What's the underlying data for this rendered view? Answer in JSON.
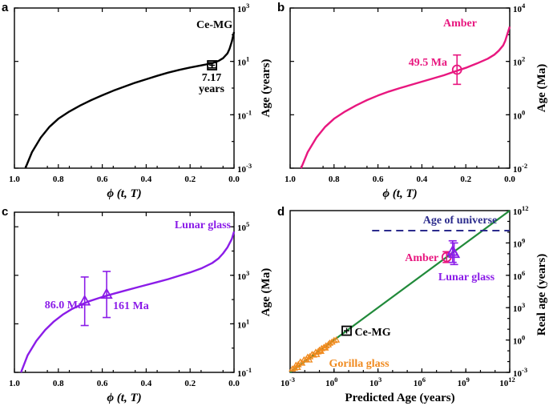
{
  "chart_data": [
    {
      "id": "a",
      "type": "line",
      "panel_letter": "a",
      "title": "Ce-MG",
      "xlabel_var": "ϕ",
      "xlabel_args": " (t, T)",
      "ylabel": "Age (years)",
      "xlim": [
        1.0,
        0.0
      ],
      "x_ticks": [
        "1.0",
        "0.8",
        "0.6",
        "0.4",
        "0.2",
        "0.0"
      ],
      "ylim_log10": [
        -3,
        3
      ],
      "y_ticks": [
        {
          "base": "10",
          "exp": "-3"
        },
        {
          "base": "10",
          "exp": "-1"
        },
        {
          "base": "10",
          "exp": "1"
        },
        {
          "base": "10",
          "exp": "3"
        }
      ],
      "color": "#000000",
      "curve": {
        "x": [
          0.95,
          0.92,
          0.88,
          0.84,
          0.8,
          0.75,
          0.7,
          0.65,
          0.6,
          0.55,
          0.5,
          0.45,
          0.4,
          0.35,
          0.3,
          0.25,
          0.2,
          0.15,
          0.1,
          0.07,
          0.05,
          0.03,
          0.02,
          0.01,
          0.0
        ],
        "log10y": [
          -3.0,
          -2.4,
          -1.85,
          -1.45,
          -1.15,
          -0.88,
          -0.65,
          -0.45,
          -0.27,
          -0.1,
          0.05,
          0.2,
          0.33,
          0.46,
          0.58,
          0.68,
          0.77,
          0.85,
          0.93,
          1.02,
          1.12,
          1.3,
          1.48,
          1.75,
          2.1
        ]
      },
      "marker": {
        "shape": "square",
        "x": 0.1,
        "value": 7.17,
        "log10y": 0.855,
        "err_log10": 0.1,
        "label_line1": "7.17",
        "label_line2": "years"
      }
    },
    {
      "id": "b",
      "type": "line",
      "panel_letter": "b",
      "title": "Amber",
      "xlabel_var": "ϕ",
      "xlabel_args": " (t, T)",
      "ylabel": "Age (Ma)",
      "xlim": [
        1.0,
        0.0
      ],
      "x_ticks": [
        "1.0",
        "0.8",
        "0.6",
        "0.4",
        "0.2",
        "0.0"
      ],
      "ylim_log10": [
        -2,
        4
      ],
      "y_ticks": [
        {
          "base": "10",
          "exp": "-2"
        },
        {
          "base": "10",
          "exp": "0"
        },
        {
          "base": "10",
          "exp": "2"
        },
        {
          "base": "10",
          "exp": "4"
        }
      ],
      "color": "#e8177f",
      "curve": {
        "x": [
          0.95,
          0.92,
          0.88,
          0.84,
          0.8,
          0.75,
          0.7,
          0.65,
          0.6,
          0.55,
          0.5,
          0.45,
          0.4,
          0.35,
          0.3,
          0.25,
          0.2,
          0.15,
          0.1,
          0.07,
          0.05,
          0.03,
          0.02,
          0.01,
          0.0
        ],
        "log10y": [
          -2.0,
          -1.4,
          -0.85,
          -0.45,
          -0.15,
          0.12,
          0.35,
          0.55,
          0.72,
          0.87,
          1.0,
          1.12,
          1.24,
          1.36,
          1.48,
          1.62,
          1.76,
          1.92,
          2.1,
          2.25,
          2.4,
          2.6,
          2.78,
          3.05,
          3.3
        ]
      },
      "marker": {
        "shape": "circle",
        "x": 0.24,
        "value": 49.5,
        "log10y": 1.69,
        "err_log10": 0.55,
        "label": "49.5 Ma"
      }
    },
    {
      "id": "c",
      "type": "line",
      "panel_letter": "c",
      "title": "Lunar glass",
      "xlabel_var": "ϕ",
      "xlabel_args": " (t, T)",
      "ylabel": "Age (Ma)",
      "xlim": [
        1.0,
        0.0
      ],
      "x_ticks": [
        "1.0",
        "0.8",
        "0.6",
        "0.4",
        "0.2",
        "0.0"
      ],
      "ylim_log10": [
        -1,
        5.6
      ],
      "y_ticks": [
        {
          "base": "10",
          "exp": "-1"
        },
        {
          "base": "10",
          "exp": "1"
        },
        {
          "base": "10",
          "exp": "3"
        },
        {
          "base": "10",
          "exp": "5"
        }
      ],
      "color": "#8b1ce8",
      "curve": {
        "x": [
          0.97,
          0.94,
          0.9,
          0.86,
          0.82,
          0.78,
          0.74,
          0.7,
          0.66,
          0.62,
          0.58,
          0.54,
          0.5,
          0.45,
          0.4,
          0.35,
          0.3,
          0.25,
          0.2,
          0.15,
          0.1,
          0.07,
          0.05,
          0.03,
          0.01,
          0.0
        ],
        "log10y": [
          -1.0,
          -0.3,
          0.3,
          0.75,
          1.1,
          1.38,
          1.6,
          1.78,
          1.93,
          2.05,
          2.16,
          2.26,
          2.36,
          2.48,
          2.6,
          2.72,
          2.84,
          2.98,
          3.12,
          3.28,
          3.5,
          3.7,
          3.9,
          4.15,
          4.5,
          4.8
        ]
      },
      "markers": [
        {
          "shape": "triangle",
          "x": 0.68,
          "value": 86.0,
          "log10y": 1.93,
          "err_log10": 1.0,
          "label": "86.0 Ma"
        },
        {
          "shape": "triangle",
          "x": 0.58,
          "value": 161,
          "log10y": 2.21,
          "err_log10": 0.95,
          "label": "161 Ma"
        }
      ]
    },
    {
      "id": "d",
      "type": "scatter",
      "panel_letter": "d",
      "xlabel": "Predicted Age (years)",
      "ylabel": "Real age (years)",
      "xlim_log10": [
        -3,
        12
      ],
      "ylim_log10": [
        -3,
        12
      ],
      "x_ticks": [
        {
          "base": "10",
          "exp": "-3"
        },
        {
          "base": "10",
          "exp": "0"
        },
        {
          "base": "10",
          "exp": "3"
        },
        {
          "base": "10",
          "exp": "6"
        },
        {
          "base": "10",
          "exp": "9"
        },
        {
          "base": "10",
          "exp": "12"
        }
      ],
      "y_ticks": [
        {
          "base": "10",
          "exp": "-3"
        },
        {
          "base": "10",
          "exp": "0"
        },
        {
          "base": "10",
          "exp": "3"
        },
        {
          "base": "10",
          "exp": "6"
        },
        {
          "base": "10",
          "exp": "9"
        },
        {
          "base": "10",
          "exp": "12"
        }
      ],
      "identity_line": {
        "from_log10": -3,
        "to_log10": 12,
        "color": "#218a3a"
      },
      "universe_line": {
        "log10y": 10.14,
        "from_log10x": 2.6,
        "to_log10x": 12,
        "color": "#2b2b8c",
        "label": "Age of universe"
      },
      "gorilla_glass": {
        "color": "#f08a1e",
        "label": "Gorilla glass",
        "points_log10": [
          [
            -2.85,
            -2.7
          ],
          [
            -2.7,
            -2.6
          ],
          [
            -2.6,
            -2.35
          ],
          [
            -2.45,
            -2.3
          ],
          [
            -2.3,
            -2.05
          ],
          [
            -2.2,
            -2.15
          ],
          [
            -2.05,
            -1.85
          ],
          [
            -1.9,
            -1.8
          ],
          [
            -1.8,
            -1.6
          ],
          [
            -1.65,
            -1.55
          ],
          [
            -1.5,
            -1.35
          ],
          [
            -1.4,
            -1.4
          ],
          [
            -1.25,
            -1.15
          ],
          [
            -1.1,
            -1.1
          ],
          [
            -1.0,
            -0.95
          ],
          [
            -0.85,
            -0.8
          ],
          [
            -0.7,
            -0.7
          ],
          [
            -0.55,
            -0.55
          ],
          [
            -0.4,
            -0.45
          ],
          [
            -0.3,
            -0.3
          ],
          [
            -0.15,
            -0.2
          ],
          [
            0.0,
            -0.05
          ],
          [
            0.15,
            0.0
          ],
          [
            -1.7,
            -1.85
          ],
          [
            -1.2,
            -1.35
          ],
          [
            -0.6,
            -0.75
          ],
          [
            -2.5,
            -2.55
          ],
          [
            -0.9,
            -1.05
          ]
        ]
      },
      "points": [
        {
          "name": "Ce-MG",
          "shape": "square",
          "color": "#000000",
          "log10x": 0.86,
          "log10y": 0.86,
          "label": "Ce-MG"
        },
        {
          "name": "Amber",
          "shape": "circle",
          "color": "#e8177f",
          "log10x": 7.69,
          "log10y": 7.69,
          "err_log10": 0.5,
          "label": "Amber"
        },
        {
          "name": "Lunar glass",
          "shape": "triangle",
          "color": "#8b1ce8",
          "log10x": 8.1,
          "log10y": 8.2,
          "err_log10": 1.0,
          "label": "Lunar glass"
        },
        {
          "name": "Lunar glass 2",
          "shape": "triangle",
          "color": "#8b1ce8",
          "log10x": 8.2,
          "log10y": 8.0,
          "err_log10": 1.0
        }
      ]
    }
  ]
}
